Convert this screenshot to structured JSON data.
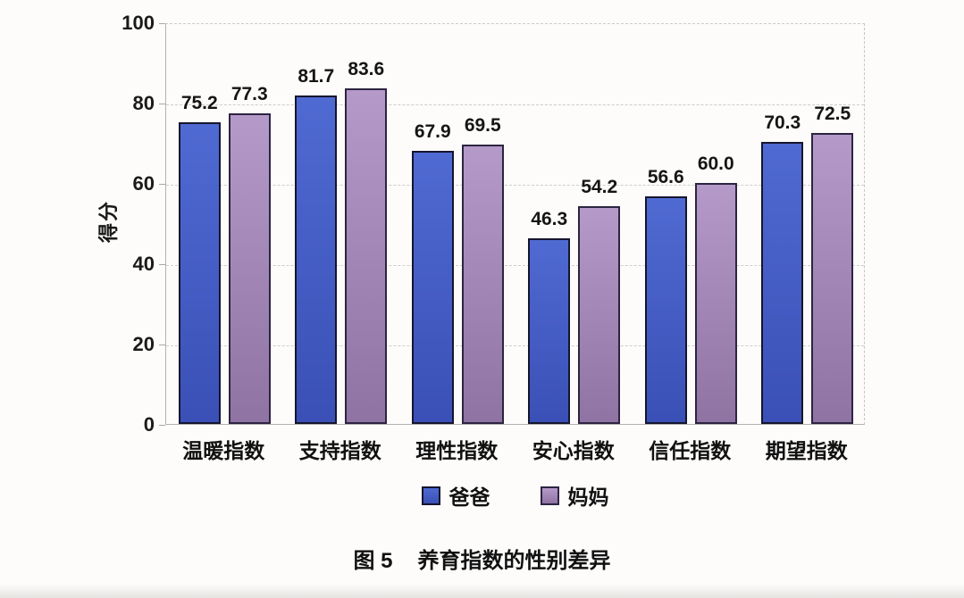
{
  "chart_data": {
    "type": "bar",
    "caption_label": "图 5",
    "caption_title": "养育指数的性别差异",
    "ylabel": "得分",
    "ylim": [
      0,
      100
    ],
    "yticks": [
      0,
      20,
      40,
      60,
      80,
      100
    ],
    "grid": true,
    "legend_position": "bottom",
    "categories": [
      "温暖指数",
      "支持指数",
      "理性指数",
      "安心指数",
      "信任指数",
      "期望指数"
    ],
    "series": [
      {
        "name": "爸爸",
        "values": [
          75.2,
          81.7,
          67.9,
          46.3,
          56.6,
          70.3
        ],
        "fill_top": "#4f6ad2",
        "fill_bottom": "#3a50b6",
        "border": "#15152e"
      },
      {
        "name": "妈妈",
        "values": [
          77.3,
          83.6,
          69.5,
          54.2,
          60.0,
          72.5
        ],
        "fill_top": "#b59ac9",
        "fill_bottom": "#8f73a3",
        "border": "#2d2440"
      }
    ]
  }
}
